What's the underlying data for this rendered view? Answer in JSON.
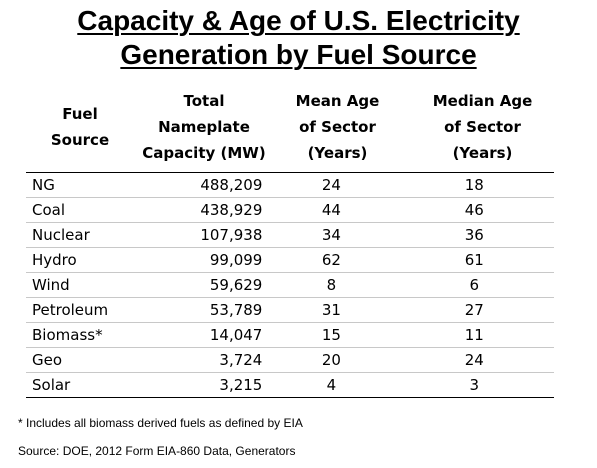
{
  "title": {
    "line1": "Capacity & Age of U.S. Electricity",
    "line2": "Generation by Fuel Source"
  },
  "chart_data": {
    "type": "table",
    "title": "Capacity & Age of U.S. Electricity Generation by Fuel Source",
    "columns": [
      [
        "Fuel",
        "Source"
      ],
      [
        "Total",
        "Nameplate",
        "Capacity (MW)"
      ],
      [
        "Mean Age",
        "of Sector",
        "(Years)"
      ],
      [
        "Median Age",
        "of Sector",
        "(Years)"
      ]
    ],
    "rows": [
      [
        "NG",
        "488,209",
        "24",
        "18"
      ],
      [
        "Coal",
        "438,929",
        "44",
        "46"
      ],
      [
        "Nuclear",
        "107,938",
        "34",
        "36"
      ],
      [
        "Hydro",
        "99,099",
        "62",
        "61"
      ],
      [
        "Wind",
        "59,629",
        "8",
        "6"
      ],
      [
        "Petroleum",
        "53,789",
        "31",
        "27"
      ],
      [
        "Biomass*",
        "14,047",
        "15",
        "11"
      ],
      [
        "Geo",
        "3,724",
        "20",
        "24"
      ],
      [
        "Solar",
        "3,215",
        "4",
        "3"
      ]
    ]
  },
  "footnote": "* Includes all biomass derived fuels as defined by EIA",
  "source": "Source: DOE, 2012 Form EIA-860 Data, Generators"
}
